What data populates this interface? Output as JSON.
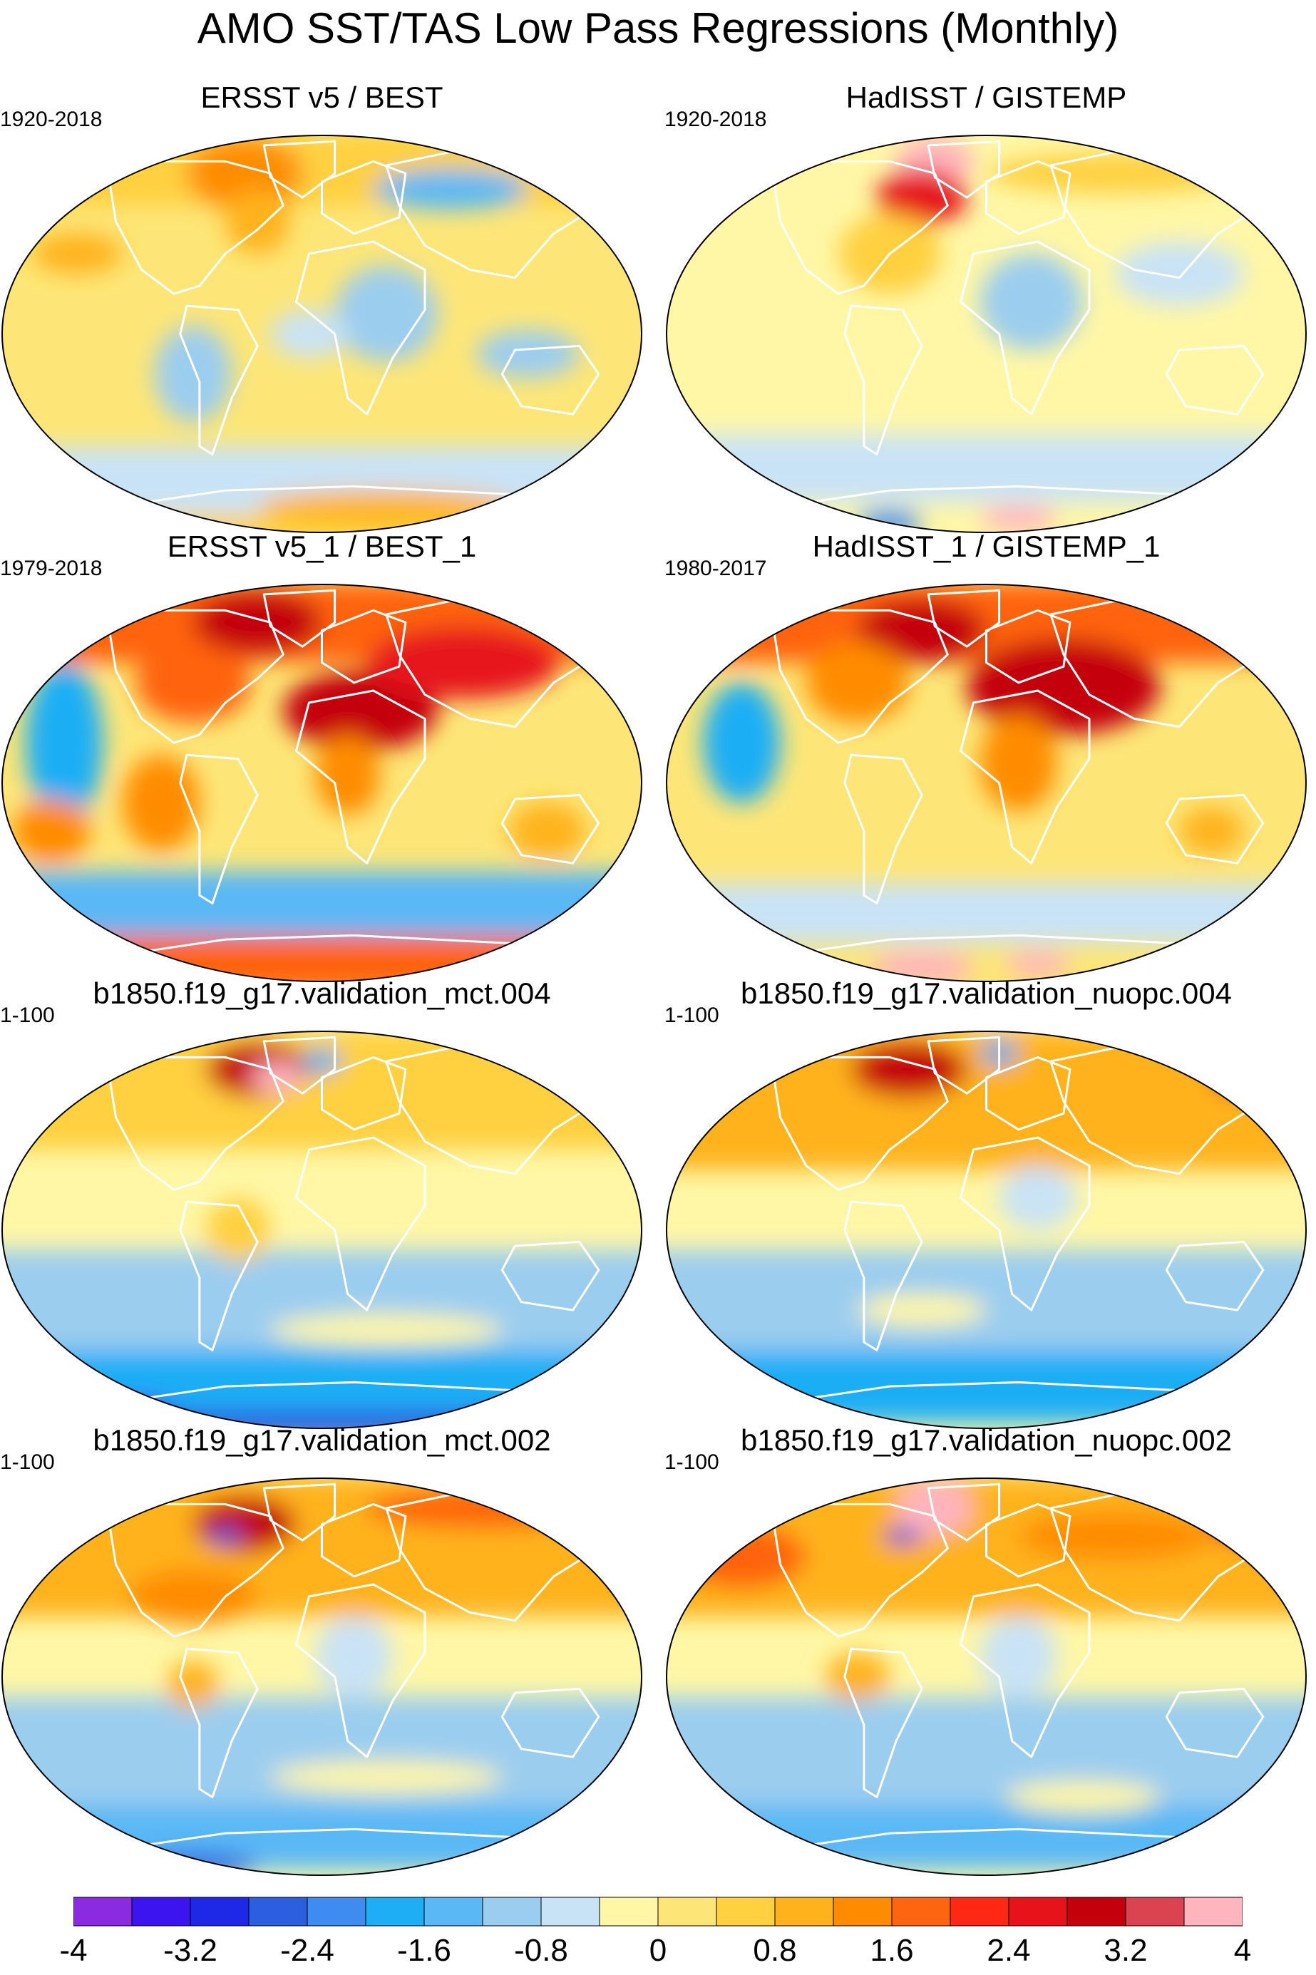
{
  "title": "AMO SST/TAS Low Pass Regressions (Monthly)",
  "chart_data": [
    {
      "type": "heatmap",
      "subtype": "global map (Robinson projection)",
      "title": "ERSST v5 / BEST",
      "period": "1920-2018",
      "pattern": "Warm North Atlantic and Greenland; moderate warming over Atlantic, Arctic and Antarctic; cooling over much of Eurasia, Southern Ocean and tropical Pacific."
    },
    {
      "type": "heatmap",
      "subtype": "global map (Robinson projection)",
      "title": "HadISST / GISTEMP",
      "period": "1920-2018",
      "pattern": "Strong warming over Greenland; warm North Atlantic and parts of Antarctica; weak cooling over Africa, Eurasia and Southern Ocean."
    },
    {
      "type": "heatmap",
      "subtype": "global map (Robinson projection)",
      "title": "ERSST v5_1 / BEST_1",
      "period": "1979-2018",
      "pattern": "Strong warming over North Africa, Eurasia, Greenland and North America; warm Antarctica; cooling in eastern Pacific and Southern Ocean."
    },
    {
      "type": "heatmap",
      "subtype": "global map (Robinson projection)",
      "title": "HadISST_1 / GISTEMP_1",
      "period": "1980-2017",
      "pattern": "Strong warming over Eurasia, North Africa and Greenland; cooling over eastern Pacific; mixed pattern over Antarctica."
    },
    {
      "type": "heatmap",
      "subtype": "global map (Robinson projection)",
      "title": "b1850.f19_g17.validation_mct.004",
      "period": "1-100",
      "pattern": "Strong warming in Labrador/Greenland region; mild warming across Northern Hemisphere; cooling across Southern Ocean, strongest near Antarctica."
    },
    {
      "type": "heatmap",
      "subtype": "global map (Robinson projection)",
      "title": "b1850.f19_g17.validation_nuopc.004",
      "period": "1-100",
      "pattern": "Strong warming in Labrador/Greenland region; warm North Pacific and Eurasia; cooling across Southern Ocean."
    },
    {
      "type": "heatmap",
      "subtype": "global map (Robinson projection)",
      "title": "b1850.f19_g17.validation_mct.002",
      "period": "1-100",
      "pattern": "Warming across the Northern Hemisphere, strongest in Labrador Sea and Arctic Russia; cooling across Southern Ocean."
    },
    {
      "type": "heatmap",
      "subtype": "global map (Robinson projection)",
      "title": "b1850.f19_g17.validation_nuopc.002",
      "period": "1-100",
      "pattern": "Strong warming over Greenland and North Pacific; warm Eurasia; cooling across Southern Ocean."
    }
  ],
  "colorbar": {
    "tick_labels": [
      "-4",
      "-3.2",
      "-2.4",
      "-1.6",
      "-0.8",
      "0",
      "0.8",
      "1.6",
      "2.4",
      "3.2",
      "4"
    ],
    "levels": [
      -4,
      -3.6,
      -3.2,
      -2.8,
      -2.4,
      -2,
      -1.6,
      -1.2,
      -0.8,
      -0.4,
      0,
      0.4,
      0.8,
      1.2,
      1.6,
      2,
      2.4,
      2.8,
      3.2,
      3.6,
      4
    ],
    "colors": [
      "#8a2be2",
      "#3c14f0",
      "#1e28e6",
      "#2b5fe0",
      "#3f8cf0",
      "#1eaef5",
      "#5ab8f5",
      "#9bcdef",
      "#c9e3f6",
      "#fff7a6",
      "#fde677",
      "#ffd040",
      "#ffb21c",
      "#ff8c00",
      "#ff6410",
      "#ff2814",
      "#e6141a",
      "#c4000d",
      "#dc4350",
      "#ffb4be"
    ]
  }
}
